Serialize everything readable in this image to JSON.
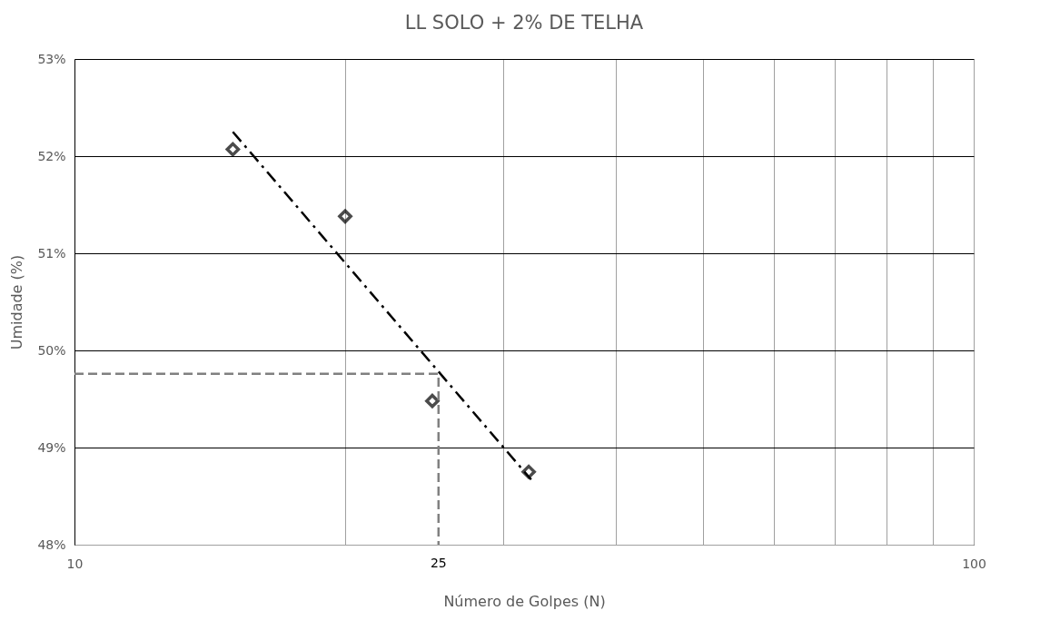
{
  "chart_data": {
    "type": "scatter",
    "title": "LL SOLO + 2% DE TELHA",
    "xlabel": "Número de Golpes (N)",
    "ylabel": "Umidade (%)",
    "log": "x",
    "grid": true,
    "marker": "diamond",
    "xlim": [
      10,
      100
    ],
    "xticks": [
      10,
      {
        "value": 20,
        "label": null
      },
      {
        "value": 30,
        "label": null
      },
      {
        "value": 40,
        "label": null
      },
      {
        "value": 50,
        "label": null
      },
      {
        "value": 60,
        "label": null
      },
      {
        "value": 70,
        "label": null
      },
      {
        "value": 80,
        "label": null
      },
      {
        "value": 90,
        "label": null
      },
      100
    ],
    "ylim": [
      48,
      53
    ],
    "yticks": [
      {
        "value": 48,
        "label": "48%"
      },
      {
        "value": 49,
        "label": "49%"
      },
      {
        "value": 50,
        "label": "50%"
      },
      {
        "value": 51,
        "label": "51%"
      },
      {
        "value": 52,
        "label": "52%"
      },
      {
        "value": 53,
        "label": "53%"
      }
    ],
    "annotations": [
      "25"
    ],
    "series": [
      {
        "color": "#000000",
        "x": [
          15,
          20,
          25,
          32
        ],
        "values": [
          52.07,
          51.38,
          49.48,
          48.75
        ]
      },
      {
        "type": "line",
        "color": "#000000",
        "line_style": "dashdot",
        "marker": "none",
        "x": [
          15,
          32.2
        ],
        "values": [
          52.25,
          48.67
        ]
      },
      {
        "type": "line",
        "color": "#808080",
        "line_style": "dashed",
        "marker": "none",
        "x": [
          10,
          25.4,
          25.4
        ],
        "values": [
          49.76,
          49.76,
          48
        ]
      }
    ]
  }
}
